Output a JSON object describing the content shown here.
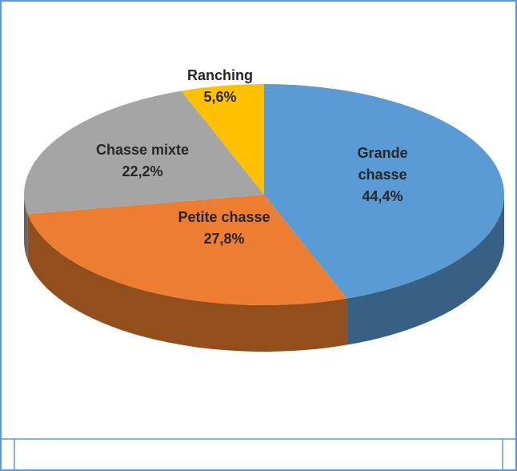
{
  "chart_data": {
    "type": "pie",
    "categories": [
      "Grande chasse",
      "Petite chasse",
      "Chasse mixte",
      "Ranching"
    ],
    "values": [
      44.4,
      27.8,
      22.2,
      5.6
    ],
    "value_labels": [
      "44,4%",
      "27,8%",
      "22,2%",
      "5,6%"
    ],
    "colors": [
      "#5b9bd5",
      "#ed7d31",
      "#a5a5a5",
      "#ffc000"
    ],
    "three_d": true
  }
}
